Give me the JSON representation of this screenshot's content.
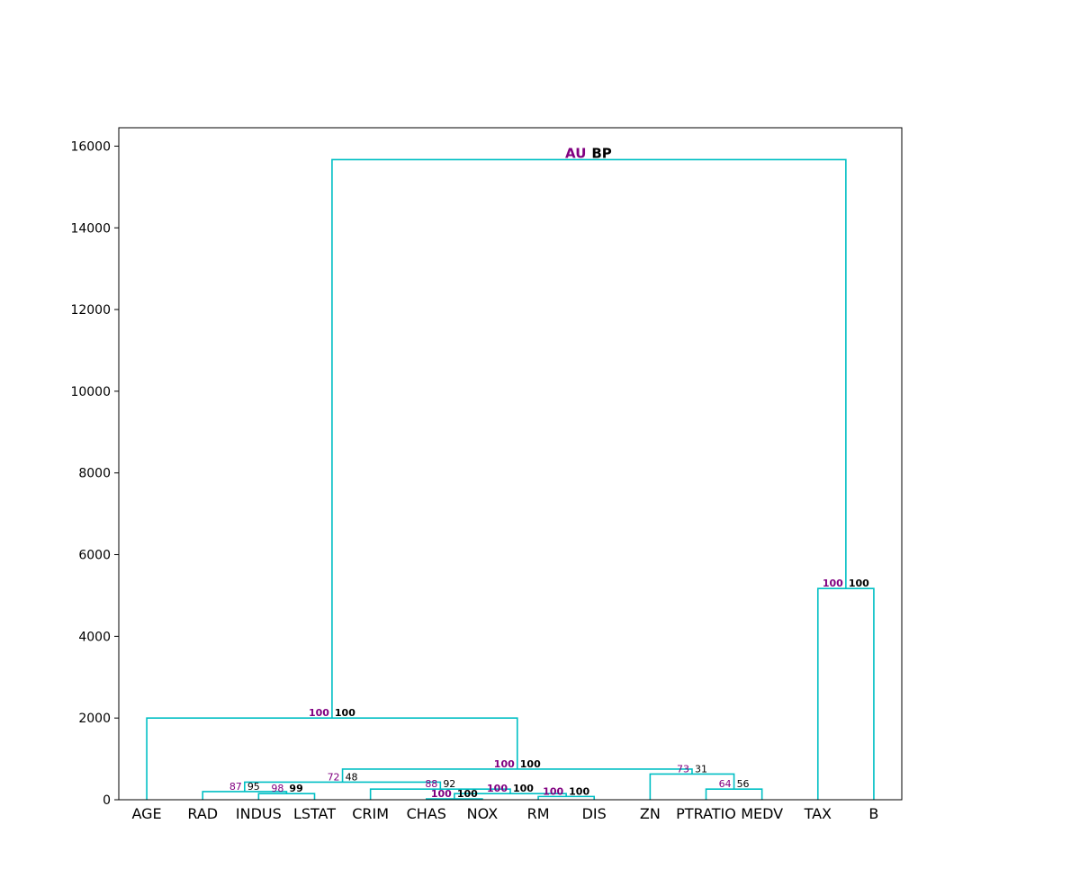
{
  "chart_data": {
    "type": "dendrogram",
    "title": "",
    "xlabel": "",
    "ylabel": "",
    "ylim": [
      0,
      16450
    ],
    "yticks": [
      0,
      2000,
      4000,
      6000,
      8000,
      10000,
      12000,
      14000,
      16000
    ],
    "grid": false,
    "leaves": [
      "AGE",
      "RAD",
      "INDUS",
      "LSTAT",
      "CRIM",
      "CHAS",
      "NOX",
      "RM",
      "DIS",
      "ZN",
      "PTRATIO",
      "MEDV",
      "TAX",
      "B"
    ],
    "legend": {
      "au_label": "AU",
      "bp_label": "BP"
    },
    "colors": {
      "link": "#00bfc4",
      "au": "#800080",
      "bp": "#000000",
      "axis": "#000000"
    },
    "merges": [
      {
        "children": [
          "leaf:CHAS",
          "leaf:NOX"
        ],
        "height": 20,
        "au": "100",
        "bp": "100"
      },
      {
        "children": [
          "leaf:RM",
          "leaf:DIS"
        ],
        "height": 80,
        "au": "100",
        "bp": "100"
      },
      {
        "children": [
          "leaf:INDUS",
          "leaf:LSTAT"
        ],
        "height": 150,
        "au": "98",
        "bp": "99"
      },
      {
        "children": [
          "merge:0",
          "merge:1"
        ],
        "height": 150,
        "au": "100",
        "bp": "100"
      },
      {
        "children": [
          "leaf:RAD",
          "merge:2"
        ],
        "height": 200,
        "au": "87",
        "bp": "95"
      },
      {
        "children": [
          "leaf:CRIM",
          "merge:3"
        ],
        "height": 260,
        "au": "88",
        "bp": "92"
      },
      {
        "children": [
          "leaf:PTRATIO",
          "leaf:MEDV"
        ],
        "height": 260,
        "au": "64",
        "bp": "56"
      },
      {
        "children": [
          "merge:4",
          "merge:5"
        ],
        "height": 430,
        "au": "72",
        "bp": "48"
      },
      {
        "children": [
          "leaf:ZN",
          "merge:6"
        ],
        "height": 630,
        "au": "73",
        "bp": "31"
      },
      {
        "children": [
          "merge:7",
          "merge:8"
        ],
        "height": 750,
        "au": "100",
        "bp": "100"
      },
      {
        "children": [
          "leaf:AGE",
          "merge:9"
        ],
        "height": 2000,
        "au": "100",
        "bp": "100"
      },
      {
        "children": [
          "leaf:TAX",
          "leaf:B"
        ],
        "height": 5170,
        "au": "100",
        "bp": "100"
      },
      {
        "children": [
          "merge:10",
          "merge:11"
        ],
        "height": 15670,
        "au": "AU",
        "bp": "BP"
      }
    ]
  }
}
